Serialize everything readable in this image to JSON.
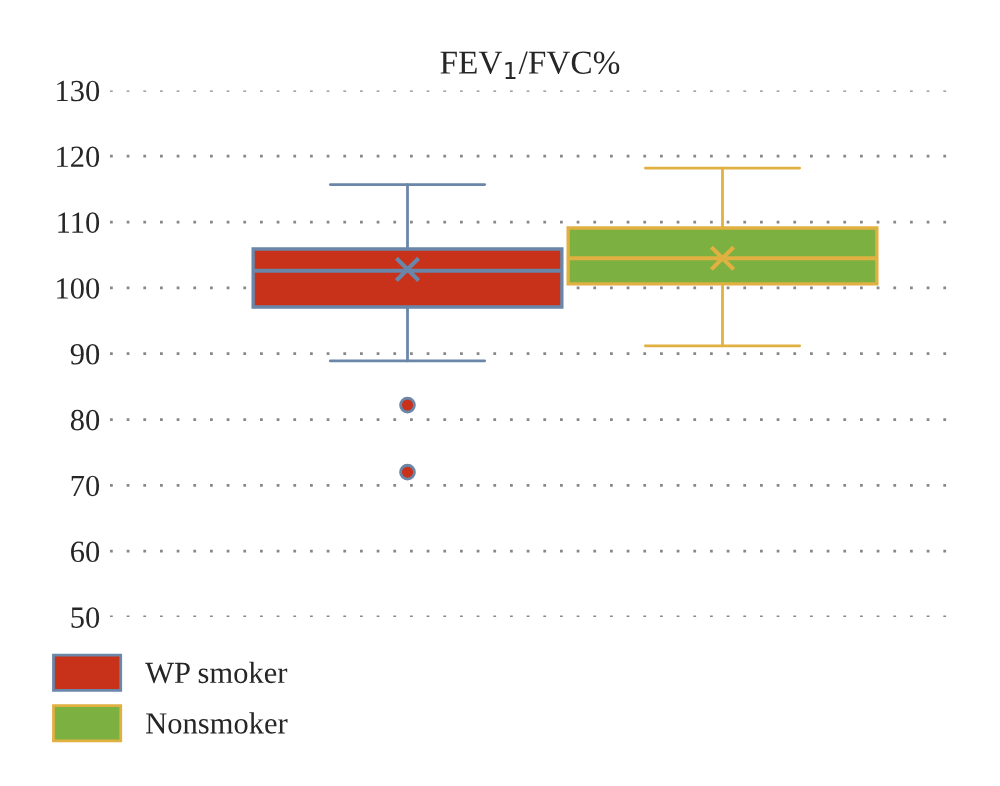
{
  "chart_data": {
    "type": "box",
    "title": "FEV$_{1}$/FVC%",
    "categories": [
      null
    ],
    "series": [
      {
        "name": "WP smoker",
        "color": "#c8321a",
        "boxes": [
          {
            "low": 88.9,
            "q1": 97.1,
            "median": 102.6,
            "q3": 105.9,
            "high": 115.7,
            "mean": 102.8,
            "outliers": [
              82.2,
              72
            ]
          }
        ]
      },
      {
        "name": "Nonsmoker",
        "color": "#7cb040",
        "boxes": [
          {
            "low": 91.2,
            "q1": 100.6,
            "median": 104.5,
            "q3": 109.1,
            "high": 118.2,
            "mean": 104.5
          }
        ]
      }
    ],
    "ylim": [
      50,
      130
    ],
    "yticks": [
      50,
      60,
      70,
      80,
      90,
      100,
      110,
      120,
      130
    ],
    "grid": "y",
    "legend": "bottom left",
    "tick_labels": "y"
  }
}
